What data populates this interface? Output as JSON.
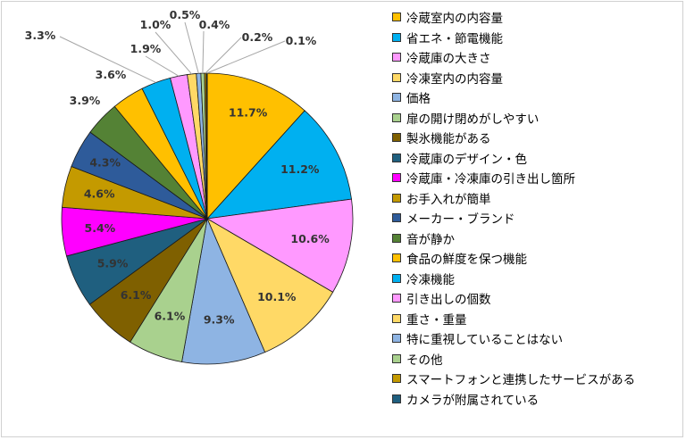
{
  "chart_data": {
    "type": "pie",
    "title": "",
    "legend_position": "right",
    "slices": [
      {
        "label": "冷蔵室内の内容量",
        "value": 11.7,
        "value_label": "11.7%",
        "color": "#ffc000"
      },
      {
        "label": "省エネ・節電機能",
        "value": 11.2,
        "value_label": "11.2%",
        "color": "#00b0f0"
      },
      {
        "label": "冷蔵庫の大きさ",
        "value": 10.6,
        "value_label": "10.6%",
        "color": "#ff99ff"
      },
      {
        "label": "冷凍室内の内容量",
        "value": 10.1,
        "value_label": "10.1%",
        "color": "#ffd966"
      },
      {
        "label": "価格",
        "value": 9.3,
        "value_label": "9.3%",
        "color": "#8eb4e3"
      },
      {
        "label": "扉の開け閉めがしやすい",
        "value": 6.1,
        "value_label": "6.1%",
        "color": "#a9d18e"
      },
      {
        "label": "製氷機能がある",
        "value": 6.1,
        "value_label": "6.1%",
        "color": "#7f6000"
      },
      {
        "label": "冷蔵庫のデザイン・色",
        "value": 5.9,
        "value_label": "5.9%",
        "color": "#1f5f7f"
      },
      {
        "label": "冷蔵庫・冷凍庫の引き出し箇所",
        "value": 5.4,
        "value_label": "5.4%",
        "color": "#ff00ff"
      },
      {
        "label": "お手入れが簡単",
        "value": 4.6,
        "value_label": "4.6%",
        "color": "#c49a00"
      },
      {
        "label": "メーカー・ブランド",
        "value": 4.3,
        "value_label": "4.3%",
        "color": "#2e5b9a"
      },
      {
        "label": "音が静か",
        "value": 3.9,
        "value_label": "3.9%",
        "color": "#548235"
      },
      {
        "label": "食品の鮮度を保つ機能",
        "value": 3.6,
        "value_label": "3.6%",
        "color": "#ffc000"
      },
      {
        "label": "冷凍機能",
        "value": 3.3,
        "value_label": "3.3%",
        "color": "#00b0f0"
      },
      {
        "label": "引き出しの個数",
        "value": 1.9,
        "value_label": "1.9%",
        "color": "#ff99ff"
      },
      {
        "label": "重さ・重量",
        "value": 1.0,
        "value_label": "1.0%",
        "color": "#ffd966"
      },
      {
        "label": "特に重視していることはない",
        "value": 0.5,
        "value_label": "0.5%",
        "color": "#8eb4e3"
      },
      {
        "label": "その他",
        "value": 0.4,
        "value_label": "0.4%",
        "color": "#a9d18e"
      },
      {
        "label": "スマートフォンと連携したサービスがある",
        "value": 0.2,
        "value_label": "0.2%",
        "color": "#c49a00"
      },
      {
        "label": "カメラが附属されている",
        "value": 0.1,
        "value_label": "0.1%",
        "color": "#1f5f7f"
      }
    ]
  }
}
